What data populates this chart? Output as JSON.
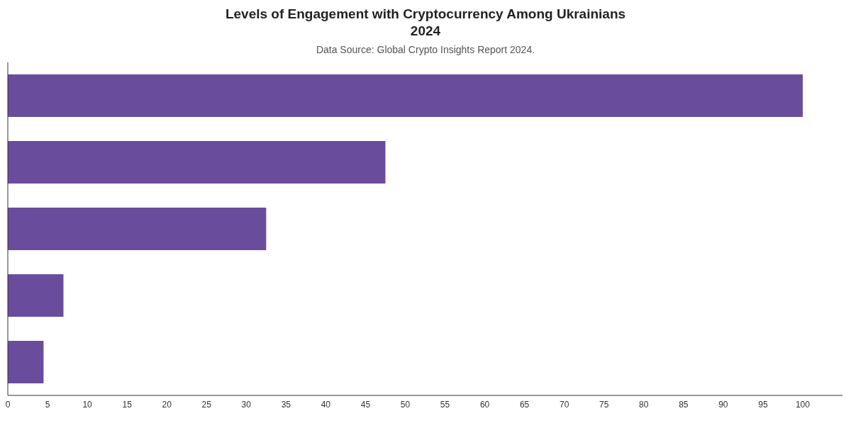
{
  "chart_data": {
    "type": "bar",
    "orientation": "horizontal",
    "title": "Levels of Engagement with Cryptocurrency Among Ukrainians 2024",
    "subtitle": "Data Source: Global Crypto Insights Report 2024.",
    "categories": [
      null,
      null,
      null,
      null,
      null
    ],
    "values": [
      100,
      47.5,
      32.5,
      7,
      4.5
    ],
    "color": "#6a4c9c",
    "xlim": [
      0,
      105
    ],
    "xticks": [
      0,
      5,
      10,
      15,
      20,
      25,
      30,
      35,
      40,
      45,
      50,
      55,
      60,
      65,
      70,
      75,
      80,
      85,
      90,
      95,
      100
    ],
    "tick_labels": "x",
    "grid": false
  }
}
